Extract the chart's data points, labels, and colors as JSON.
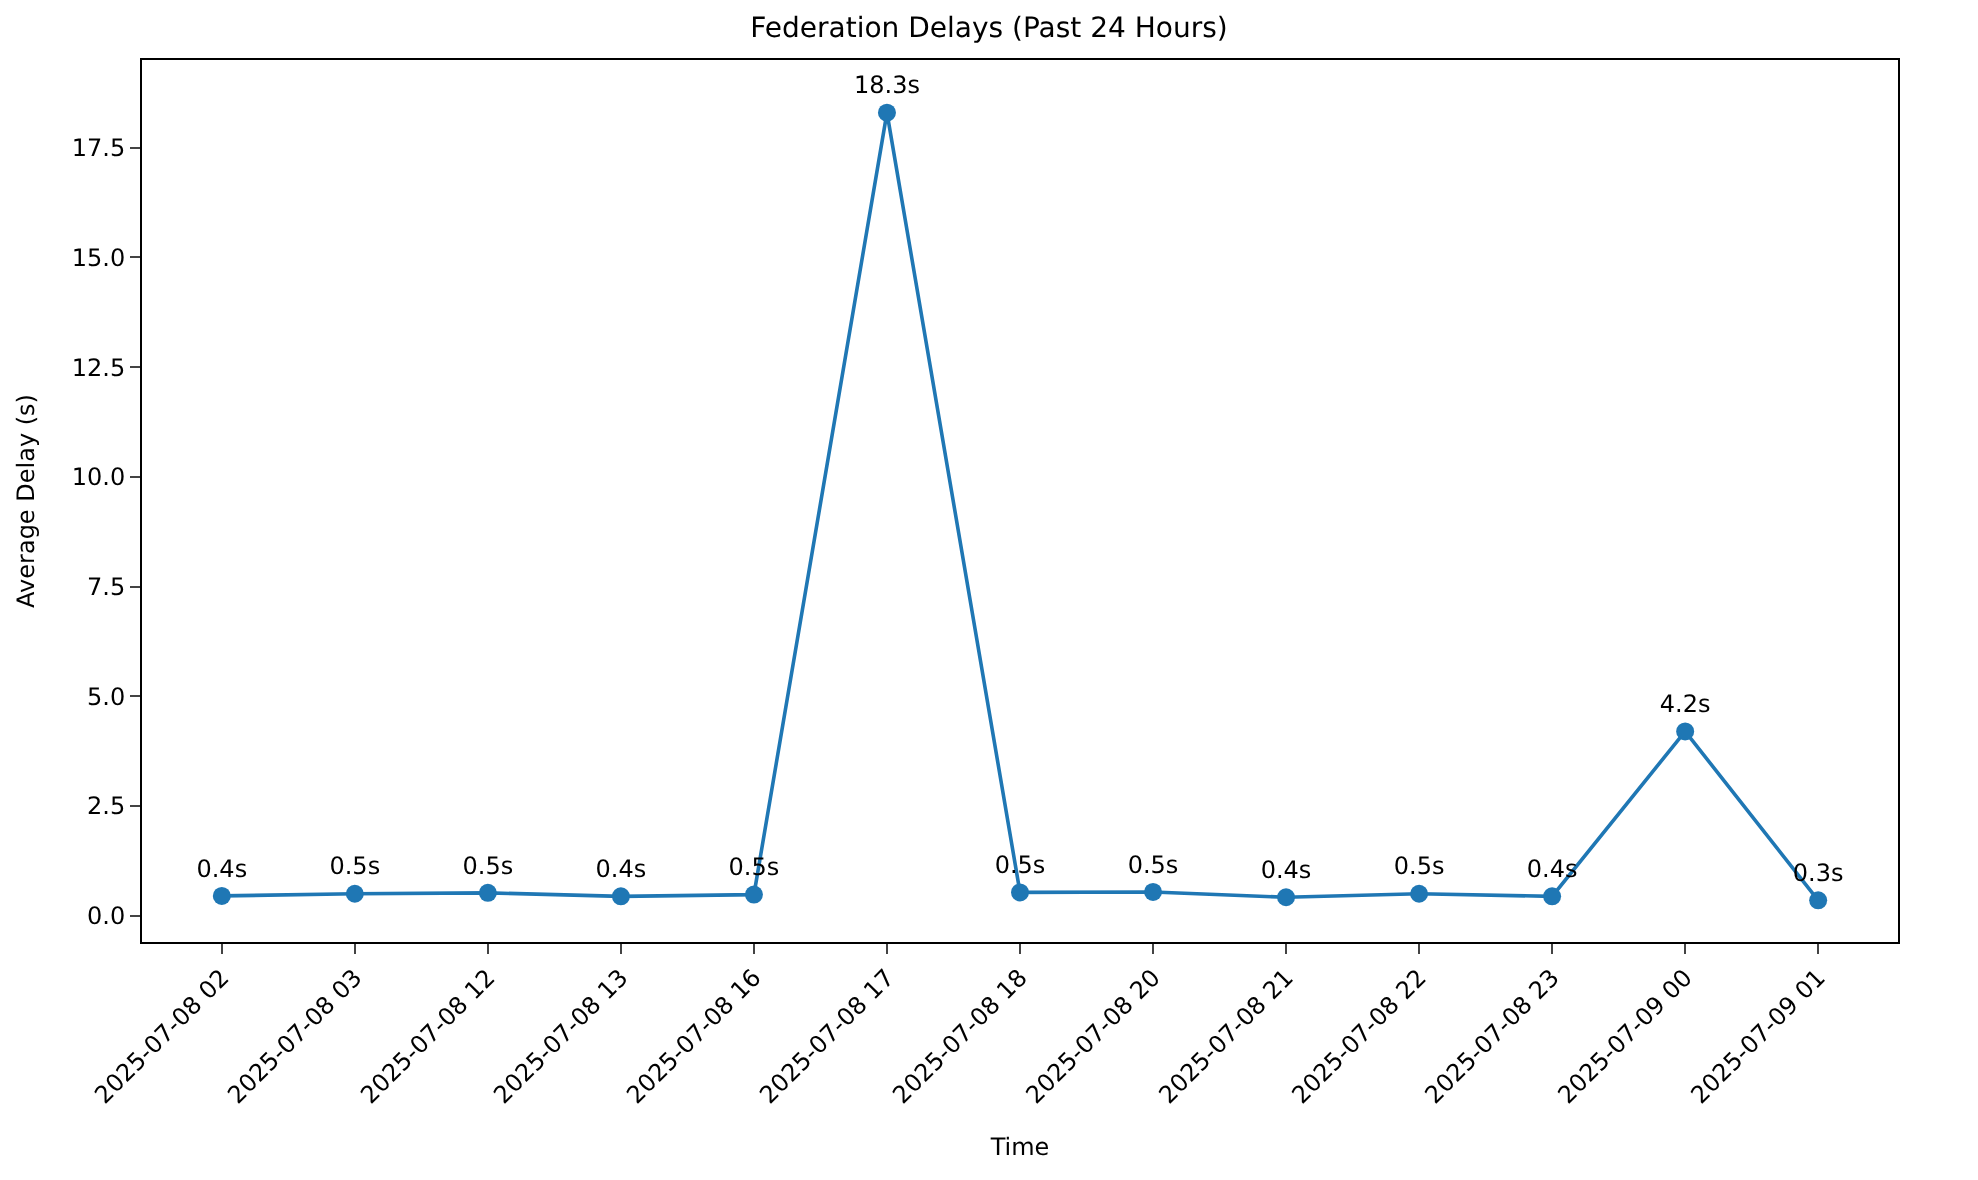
{
  "chart_data": {
    "type": "line",
    "title": "Federation Delays (Past 24 Hours)",
    "xlabel": "Time",
    "ylabel": "Average Delay (s)",
    "categories": [
      "2025-07-08 02",
      "2025-07-08 03",
      "2025-07-08 12",
      "2025-07-08 13",
      "2025-07-08 16",
      "2025-07-08 17",
      "2025-07-08 18",
      "2025-07-08 20",
      "2025-07-08 21",
      "2025-07-08 22",
      "2025-07-08 23",
      "2025-07-09 00",
      "2025-07-09 01"
    ],
    "series": [
      {
        "color": "#1f77b4",
        "values": [
          0.45,
          0.5,
          0.52,
          0.44,
          0.48,
          18.3,
          0.53,
          0.54,
          0.42,
          0.5,
          0.44,
          4.2,
          0.35
        ],
        "value_labels": [
          "0.4s",
          "0.5s",
          "0.5s",
          "0.4s",
          "0.5s",
          "18.3s",
          "0.5s",
          "0.5s",
          "0.4s",
          "0.5s",
          "0.4s",
          "4.2s",
          "0.3s"
        ]
      }
    ],
    "ylim": [
      -0.6,
      19.5
    ],
    "yticks": [
      {
        "value": 0,
        "label": "0.0"
      },
      2.5,
      {
        "value": 5,
        "label": "5.0"
      },
      7.5,
      {
        "value": 10,
        "label": "10.0"
      },
      12.5,
      {
        "value": 15,
        "label": "15.0"
      },
      17.5
    ],
    "marker": "circle",
    "line_style": "solid",
    "legend": false
  }
}
